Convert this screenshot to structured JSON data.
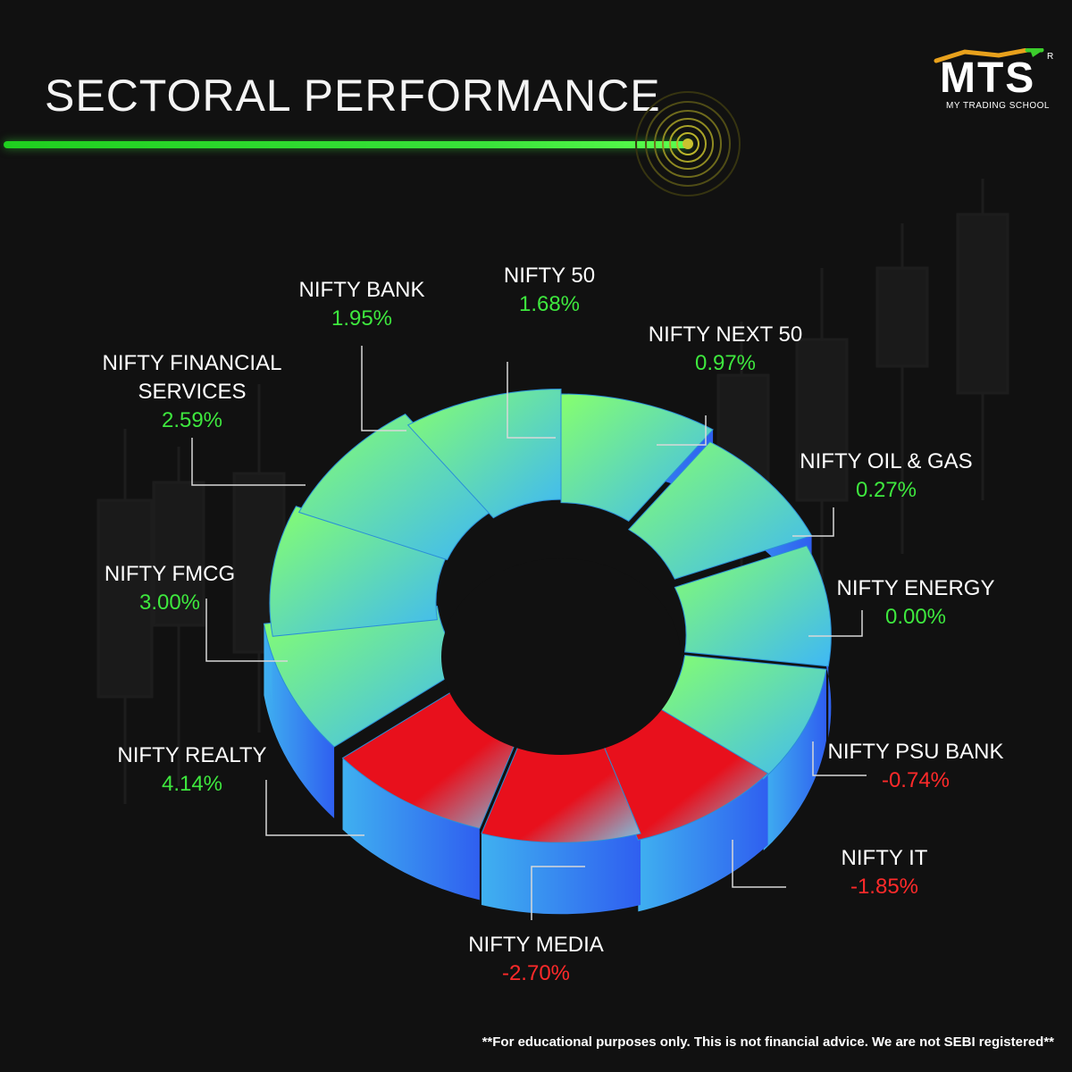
{
  "title": "SECTORAL PERFORMANCE",
  "logo": {
    "text": "MTS",
    "subtitle": "MY TRADING SCHOOL",
    "mark": "R"
  },
  "disclaimer": "**For educational purposes only. This is not financial advice. We are not SEBI registered**",
  "colors": {
    "positive": "#3ee83e",
    "negative": "#ff2a2a",
    "accent_line": "#39e23a",
    "background": "#111111",
    "slice_top_positive": "#7dff78",
    "slice_side": "#2f6ff0",
    "slice_top_negative": "#e0101a"
  },
  "chart_data": {
    "type": "pie",
    "title": "SECTORAL PERFORMANCE",
    "unit": "%",
    "categories": [
      "NIFTY 50",
      "NIFTY NEXT 50",
      "NIFTY OIL & GAS",
      "NIFTY ENERGY",
      "NIFTY PSU BANK",
      "NIFTY IT",
      "NIFTY MEDIA",
      "NIFTY REALTY",
      "NIFTY FMCG",
      "NIFTY FINANCIAL SERVICES",
      "NIFTY BANK"
    ],
    "values": [
      1.68,
      0.97,
      0.27,
      0.0,
      -0.74,
      -1.85,
      -2.7,
      4.14,
      3.0,
      2.59,
      1.95
    ],
    "labels": [
      {
        "name": "NIFTY 50",
        "value": "1.68%"
      },
      {
        "name": "NIFTY NEXT 50",
        "value": "0.97%"
      },
      {
        "name": "NIFTY OIL & GAS",
        "value": "0.27%"
      },
      {
        "name": "NIFTY ENERGY",
        "value": "0.00%"
      },
      {
        "name": "NIFTY PSU BANK",
        "value": "-0.74%"
      },
      {
        "name": "NIFTY IT",
        "value": "-1.85%"
      },
      {
        "name": "NIFTY MEDIA",
        "value": "-2.70%"
      },
      {
        "name": "NIFTY REALTY",
        "value": "4.14%"
      },
      {
        "name": "NIFTY FMCG",
        "value": "3.00%"
      },
      {
        "name": "NIFTY FINANCIAL",
        "name_line2": "SERVICES",
        "value": "2.59%"
      },
      {
        "name": "NIFTY BANK",
        "value": "1.95%"
      }
    ]
  }
}
